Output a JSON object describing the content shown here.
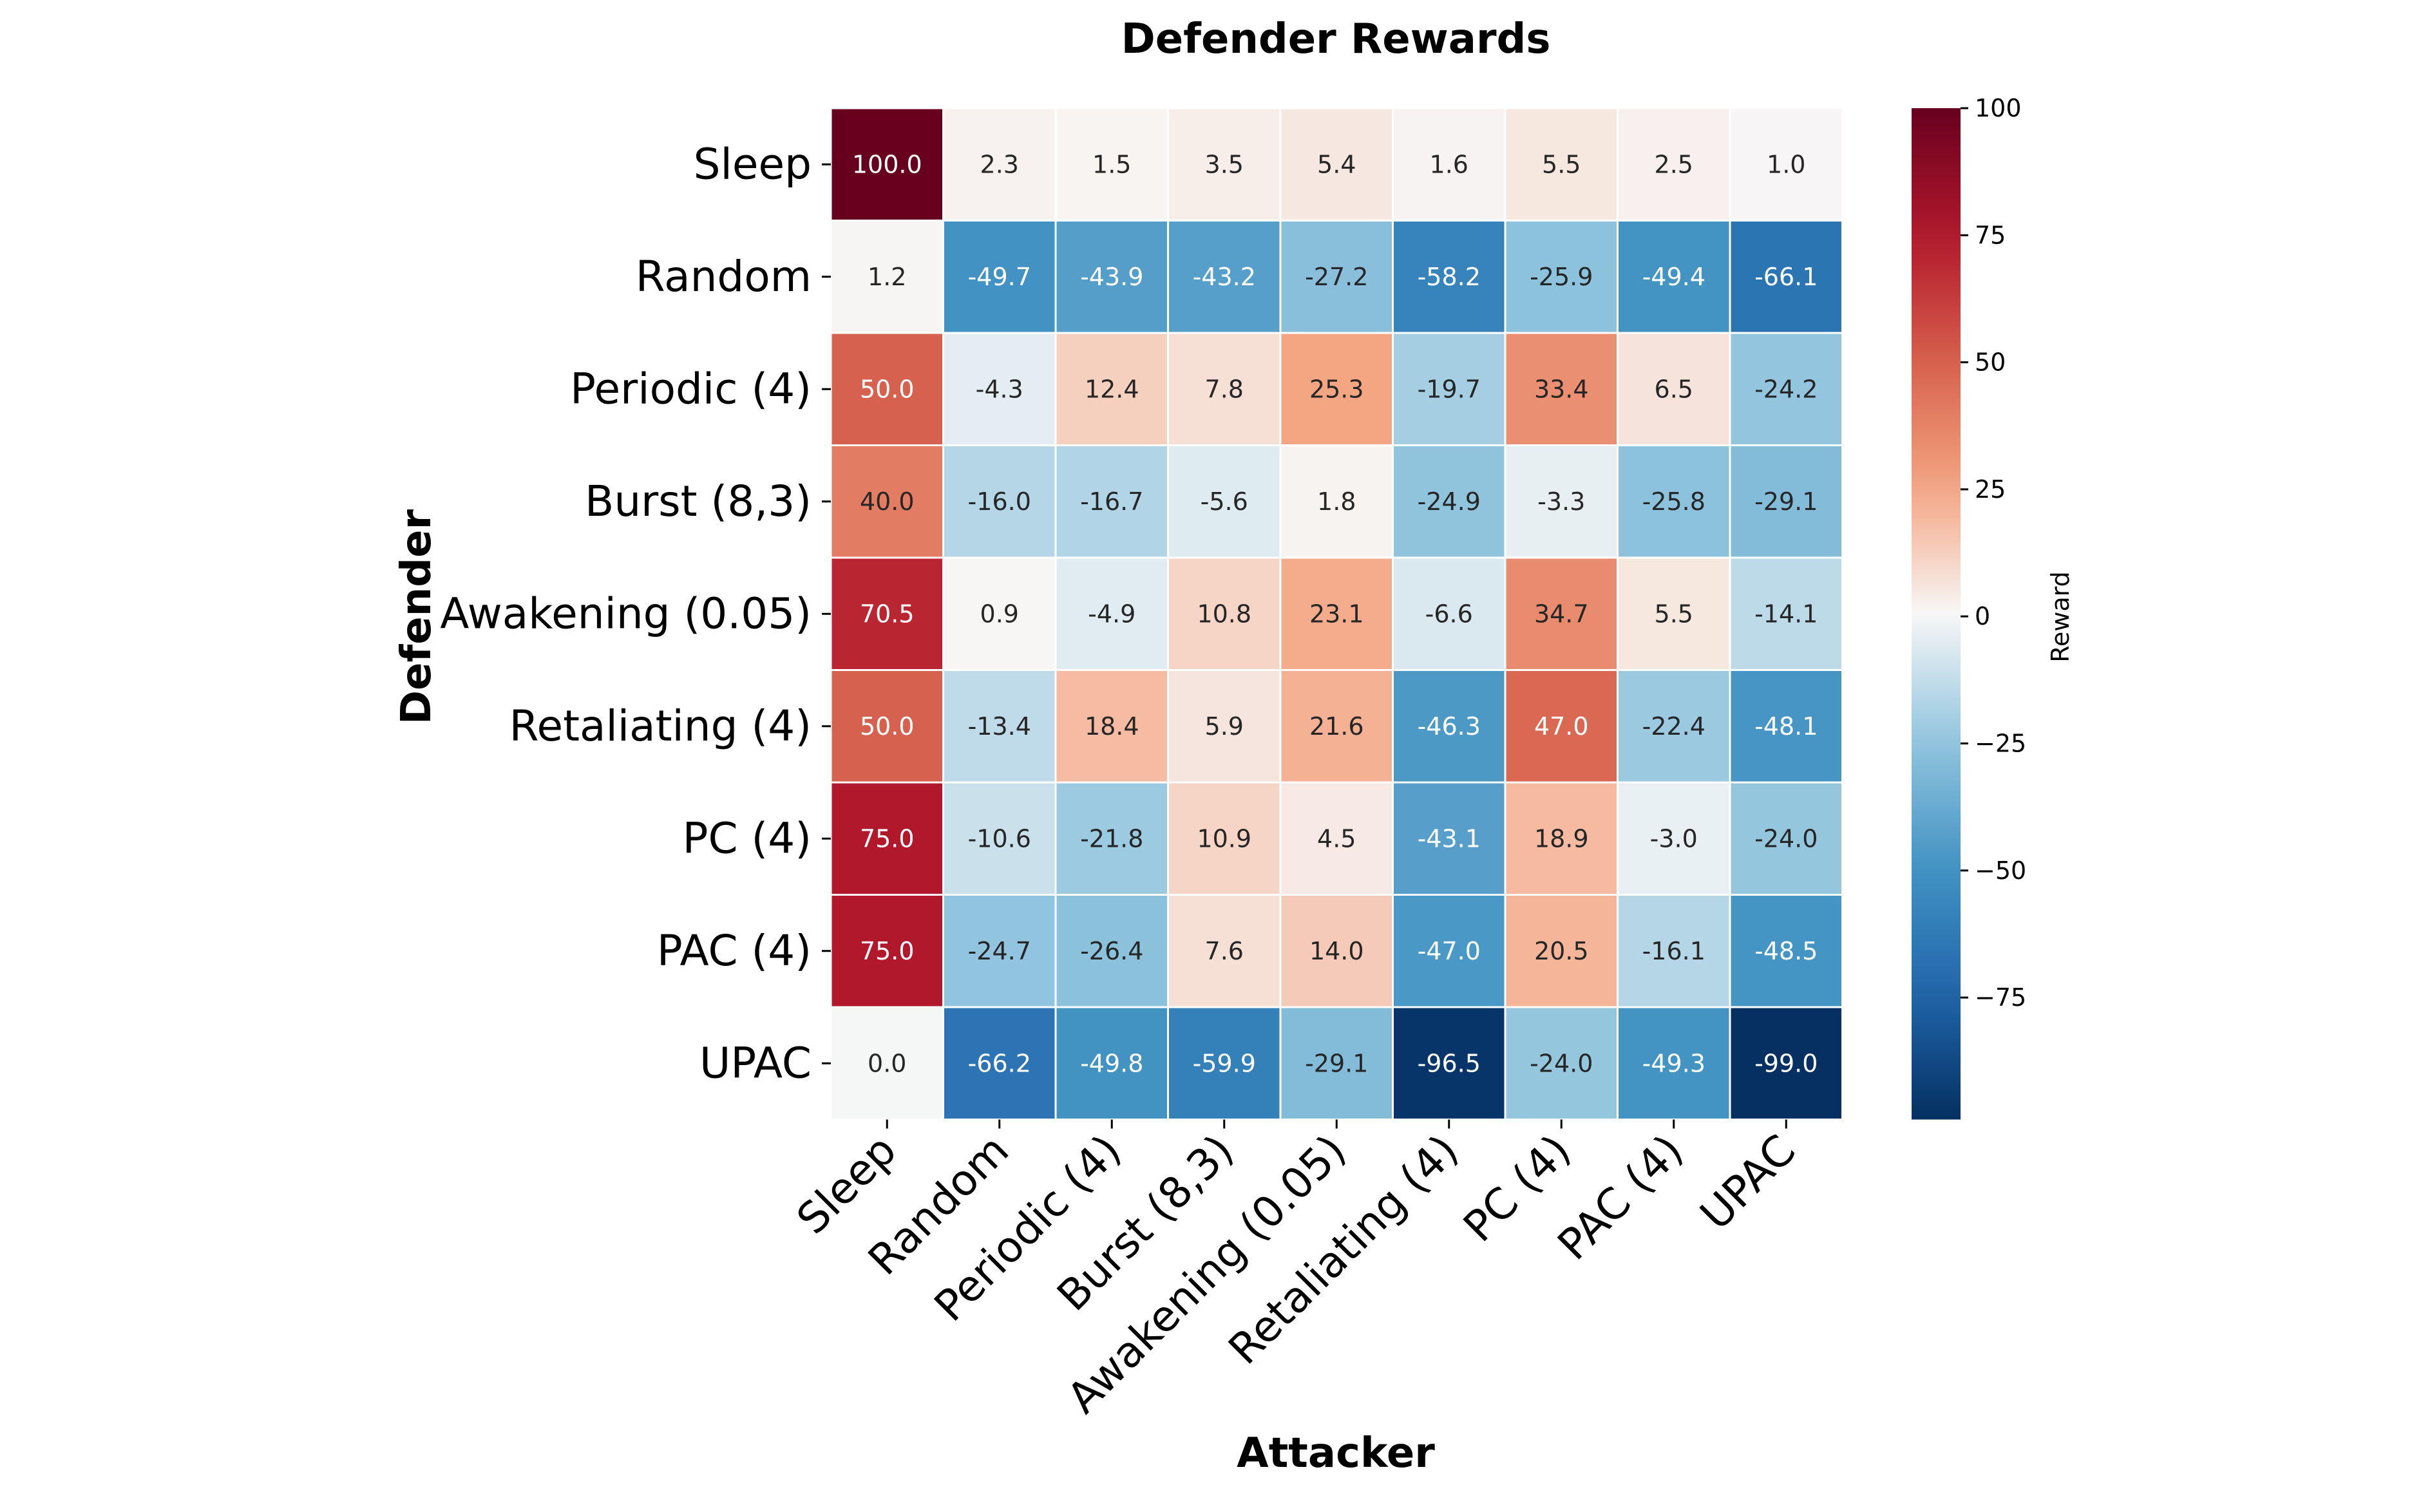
{
  "chart_data": {
    "type": "heatmap",
    "title": "Defender Rewards",
    "xlabel": "Attacker",
    "ylabel": "Defender",
    "colorbar_label": "Reward",
    "colormap": "RdBu_r",
    "vmin": -99.0,
    "vmax": 100.0,
    "colorbar_ticks": [
      100,
      75,
      50,
      25,
      0,
      -25,
      -50,
      -75
    ],
    "colorbar_tick_labels": [
      "100",
      "75",
      "50",
      "25",
      "0",
      "−25",
      "−50",
      "−75"
    ],
    "rows": [
      "Sleep",
      "Random",
      "Periodic (4)",
      "Burst (8,3)",
      "Awakening (0.05)",
      "Retaliating (4)",
      "PC (4)",
      "PAC (4)",
      "UPAC"
    ],
    "columns": [
      "Sleep",
      "Random",
      "Periodic (4)",
      "Burst (8,3)",
      "Awakening (0.05)",
      "Retaliating (4)",
      "PC (4)",
      "PAC (4)",
      "UPAC"
    ],
    "values": [
      [
        100.0,
        2.3,
        1.5,
        3.5,
        5.4,
        1.6,
        5.5,
        2.5,
        1.0
      ],
      [
        1.2,
        -49.7,
        -43.9,
        -43.2,
        -27.2,
        -58.2,
        -25.9,
        -49.4,
        -66.1
      ],
      [
        50.0,
        -4.3,
        12.4,
        7.8,
        25.3,
        -19.7,
        33.4,
        6.5,
        -24.2
      ],
      [
        40.0,
        -16.0,
        -16.7,
        -5.6,
        1.8,
        -24.9,
        -3.3,
        -25.8,
        -29.1
      ],
      [
        70.5,
        0.9,
        -4.9,
        10.8,
        23.1,
        -6.6,
        34.7,
        5.5,
        -14.1
      ],
      [
        50.0,
        -13.4,
        18.4,
        5.9,
        21.6,
        -46.3,
        47.0,
        -22.4,
        -48.1
      ],
      [
        75.0,
        -10.6,
        -21.8,
        10.9,
        4.5,
        -43.1,
        18.9,
        -3.0,
        -24.0
      ],
      [
        75.0,
        -24.7,
        -26.4,
        7.6,
        14.0,
        -47.0,
        20.5,
        -16.1,
        -48.5
      ],
      [
        0.0,
        -66.2,
        -49.8,
        -59.9,
        -29.1,
        -96.5,
        -24.0,
        -49.3,
        -99.0
      ]
    ],
    "value_format": "0.1f",
    "grid": false
  }
}
